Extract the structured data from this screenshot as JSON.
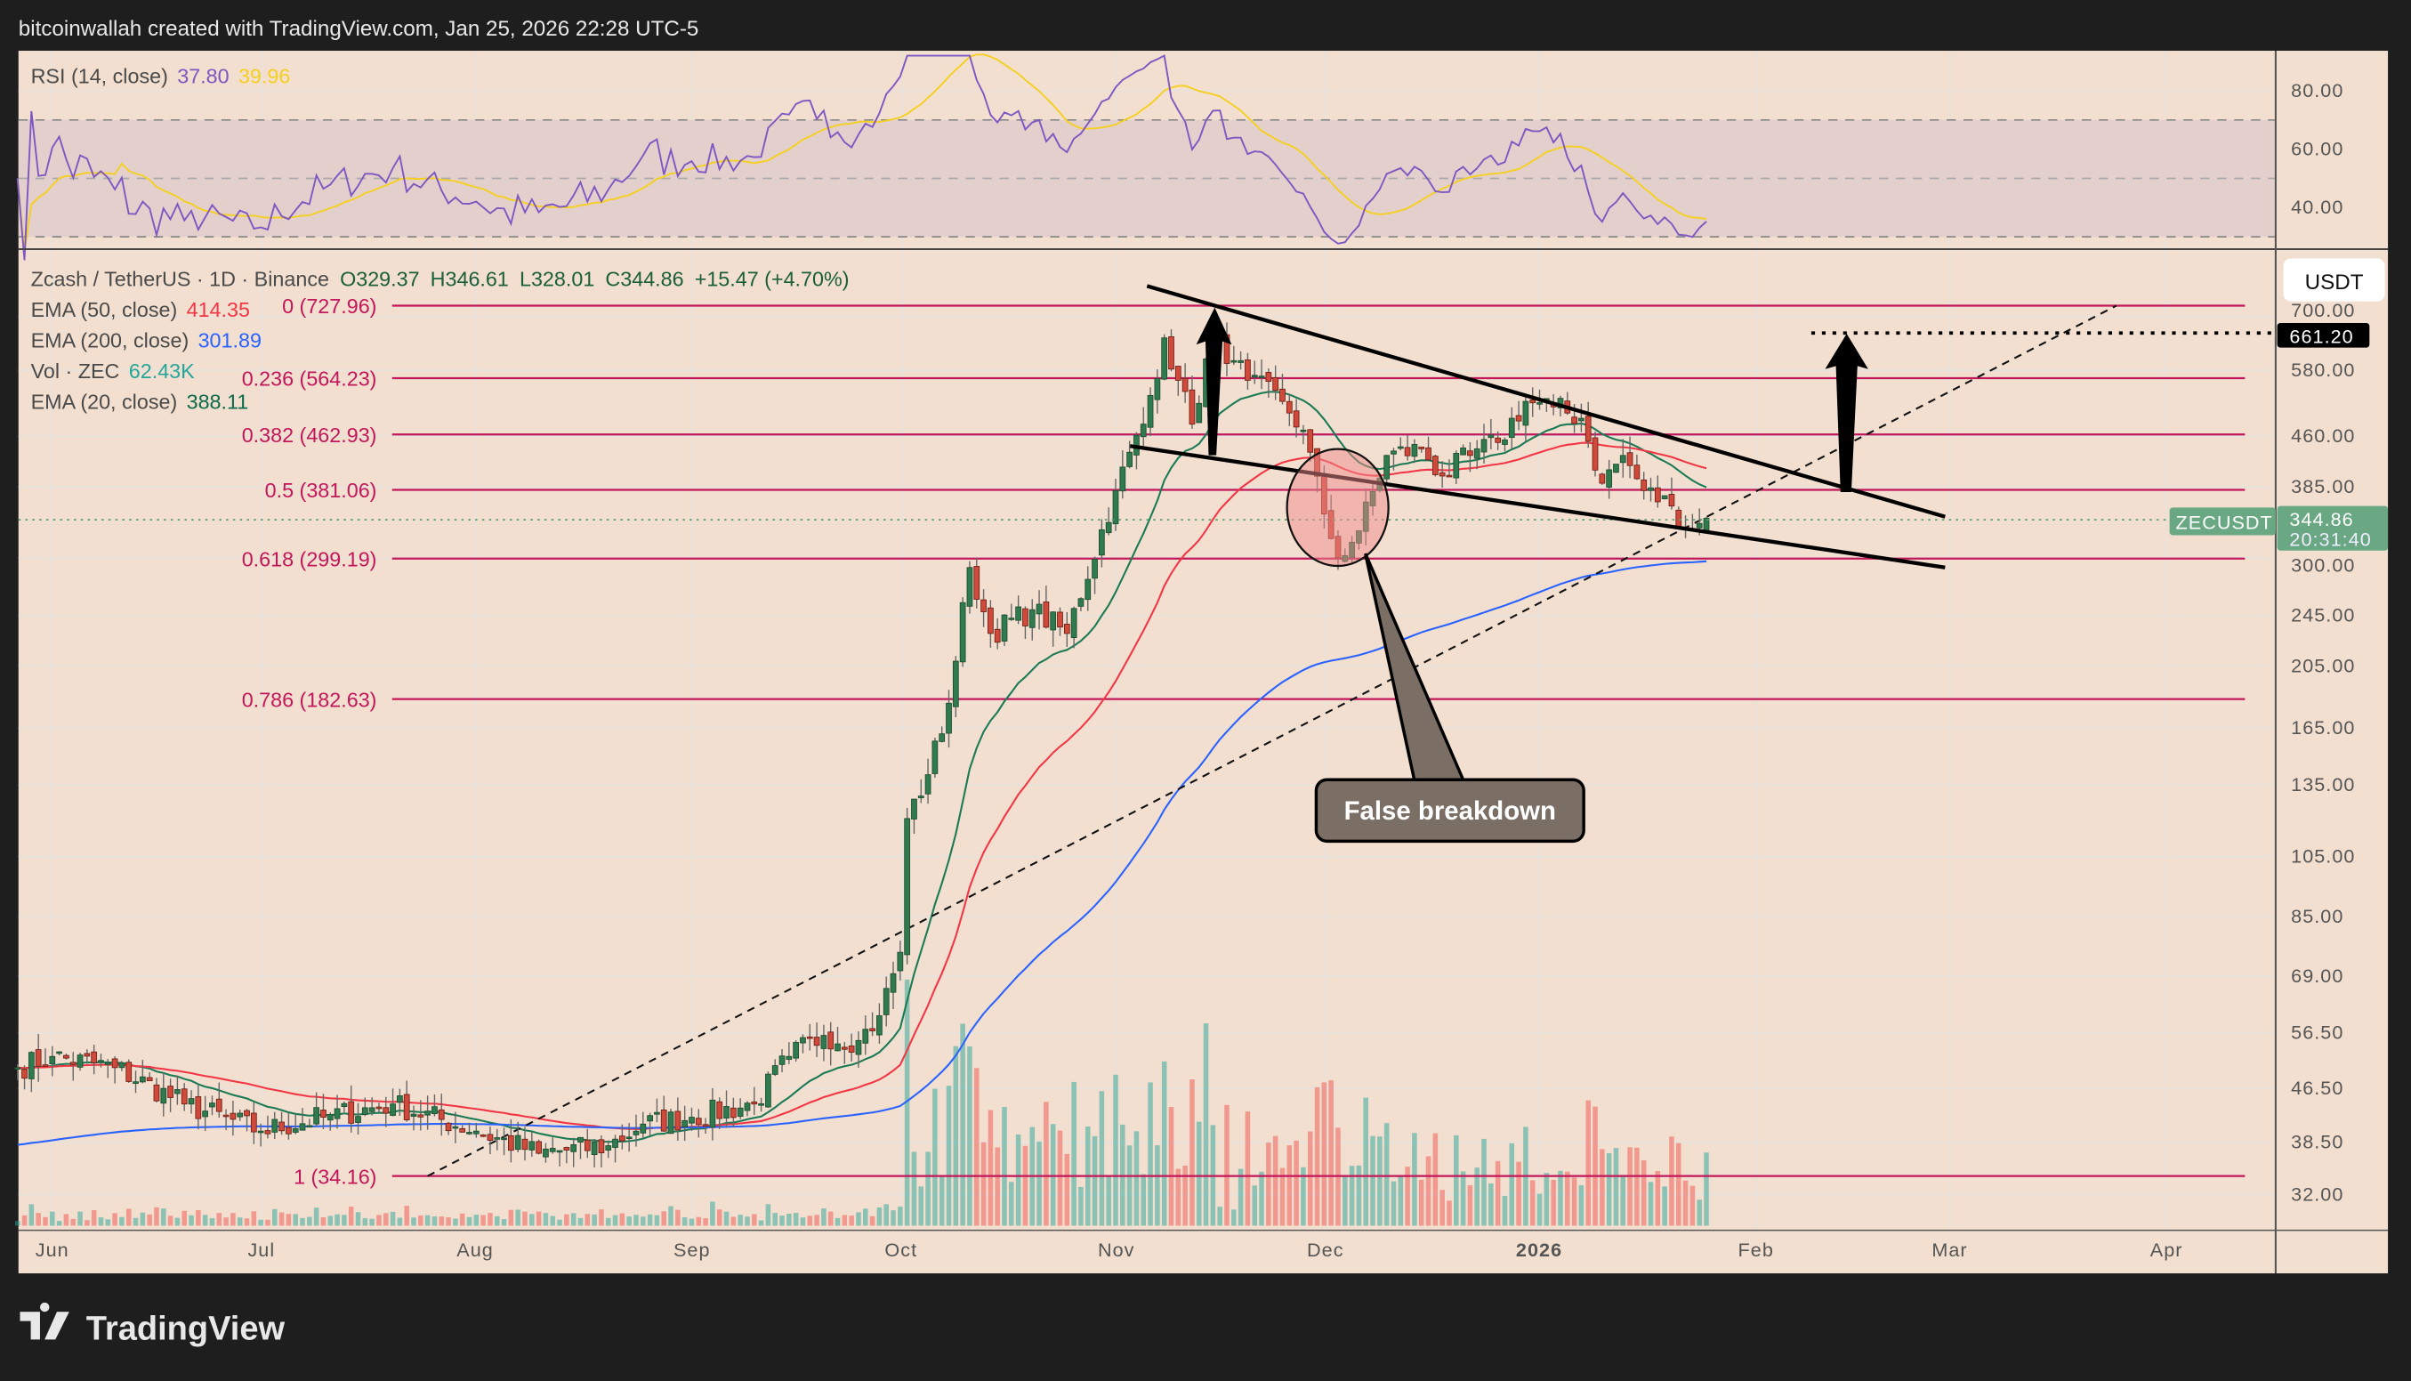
{
  "header": {
    "credit": "bitcoinwallah created with TradingView.com, Jan 25, 2026 22:28 UTC-5"
  },
  "footer": {
    "logo_text": "TradingView"
  },
  "colors": {
    "background": "#f2dfcf",
    "up": "#2f7a4f",
    "down": "#cf4a3a",
    "fib": "#c2185b",
    "ema20": "#1a7a55",
    "ema50": "#f23645",
    "ema200": "#2962ff",
    "rsi": "#7e57c2",
    "rsi_ma": "#f5d020",
    "price_tag": "#6aa884"
  },
  "legend": {
    "symbol": "Zcash / TetherUS · 1D · Binance",
    "open": "O329.37",
    "high": "H346.61",
    "low": "L328.01",
    "close": "C344.86",
    "change": "+15.47 (+4.70%)",
    "ema50_label": "EMA (50, close)",
    "ema50_value": "414.35",
    "ema200_label": "EMA (200, close)",
    "ema200_value": "301.89",
    "vol_label": "Vol · ZEC",
    "vol_value": "62.43K",
    "ema20_label": "EMA (20, close)",
    "ema20_value": "388.11"
  },
  "rsi_panel": {
    "label": "RSI (14, close)",
    "rsi_value": "37.80",
    "ma_value": "39.96",
    "ticks": [
      "80.00",
      "60.00",
      "40.00"
    ],
    "upper_band": 70,
    "lower_band": 30
  },
  "price_axis": {
    "currency": "USDT",
    "ticks": [
      "700.00",
      "580.00",
      "460.00",
      "385.00",
      "300.00",
      "245.00",
      "205.00",
      "165.00",
      "135.00",
      "105.00",
      "85.00",
      "69.00",
      "56.50",
      "46.50",
      "38.50",
      "32.00"
    ],
    "target_label": "661.20",
    "symbol_tag": "ZECUSDT",
    "last_price": "344.86",
    "countdown": "20:31:40"
  },
  "time_axis": {
    "ticks": [
      "Jun",
      "Jul",
      "Aug",
      "Sep",
      "Oct",
      "Nov",
      "Dec",
      "2026",
      "Feb",
      "Mar",
      "Apr"
    ]
  },
  "fib_levels": [
    {
      "label": "0 (727.96)",
      "price": 727.96
    },
    {
      "label": "0.236 (564.23)",
      "price": 564.23
    },
    {
      "label": "0.382 (462.93)",
      "price": 462.93
    },
    {
      "label": "0.5 (381.06)",
      "price": 381.06
    },
    {
      "label": "0.618 (299.19)",
      "price": 299.19
    },
    {
      "label": "0.786 (182.63)",
      "price": 182.63
    },
    {
      "label": "1 (34.16)",
      "price": 34.16
    }
  ],
  "annotation": {
    "callout": "False breakdown"
  },
  "chart_data": {
    "type": "candlestick",
    "scale": "log",
    "ylim": [
      30,
      760
    ],
    "xlim": [
      "2025-05-27",
      "2026-04-15"
    ],
    "last_candle": {
      "date": "2026-01-25",
      "open": 329.37,
      "high": 346.61,
      "low": 328.01,
      "close": 344.86
    },
    "close_waypoints": [
      [
        "2025-05-27",
        50
      ],
      [
        "2025-06-01",
        52
      ],
      [
        "2025-06-10",
        50
      ],
      [
        "2025-06-20",
        44
      ],
      [
        "2025-07-01",
        40
      ],
      [
        "2025-07-10",
        42
      ],
      [
        "2025-07-20",
        44
      ],
      [
        "2025-08-01",
        40
      ],
      [
        "2025-08-10",
        37
      ],
      [
        "2025-08-20",
        38
      ],
      [
        "2025-08-25",
        41
      ],
      [
        "2025-09-01",
        42
      ],
      [
        "2025-09-10",
        44
      ],
      [
        "2025-09-15",
        52
      ],
      [
        "2025-09-20",
        56
      ],
      [
        "2025-09-25",
        55
      ],
      [
        "2025-09-28",
        60
      ],
      [
        "2025-10-01",
        75
      ],
      [
        "2025-10-02",
        120
      ],
      [
        "2025-10-05",
        140
      ],
      [
        "2025-10-08",
        180
      ],
      [
        "2025-10-11",
        290
      ],
      [
        "2025-10-14",
        230
      ],
      [
        "2025-10-20",
        250
      ],
      [
        "2025-10-25",
        230
      ],
      [
        "2025-11-01",
        380
      ],
      [
        "2025-11-05",
        480
      ],
      [
        "2025-11-08",
        650
      ],
      [
        "2025-11-10",
        560
      ],
      [
        "2025-11-12",
        480
      ],
      [
        "2025-11-15",
        660
      ],
      [
        "2025-11-18",
        600
      ],
      [
        "2025-11-20",
        560
      ],
      [
        "2025-11-25",
        520
      ],
      [
        "2025-11-28",
        470
      ],
      [
        "2025-12-01",
        350
      ],
      [
        "2025-12-03",
        300
      ],
      [
        "2025-12-06",
        330
      ],
      [
        "2025-12-10",
        430
      ],
      [
        "2025-12-15",
        440
      ],
      [
        "2025-12-18",
        400
      ],
      [
        "2025-12-22",
        430
      ],
      [
        "2025-12-26",
        450
      ],
      [
        "2025-12-30",
        520
      ],
      [
        "2026-01-03",
        510
      ],
      [
        "2026-01-07",
        490
      ],
      [
        "2026-01-10",
        390
      ],
      [
        "2026-01-13",
        430
      ],
      [
        "2026-01-16",
        380
      ],
      [
        "2026-01-20",
        360
      ],
      [
        "2026-01-23",
        330
      ],
      [
        "2026-01-25",
        344.86
      ]
    ],
    "indicators": [
      "EMA 20",
      "EMA 50",
      "EMA 200",
      "Volume",
      "RSI 14 with MA"
    ],
    "drawings": {
      "descending_wedge_upper": [
        [
          "2025-11-05",
          760
        ],
        [
          "2026-02-28",
          360
        ]
      ],
      "descending_wedge_lower": [
        [
          "2025-11-03",
          430
        ],
        [
          "2026-02-28",
          290
        ]
      ],
      "rising_trendline": [
        [
          "2025-07-25",
          34.16
        ],
        [
          "2026-03-25",
          727.96
        ]
      ],
      "target_level": 661.2
    }
  }
}
